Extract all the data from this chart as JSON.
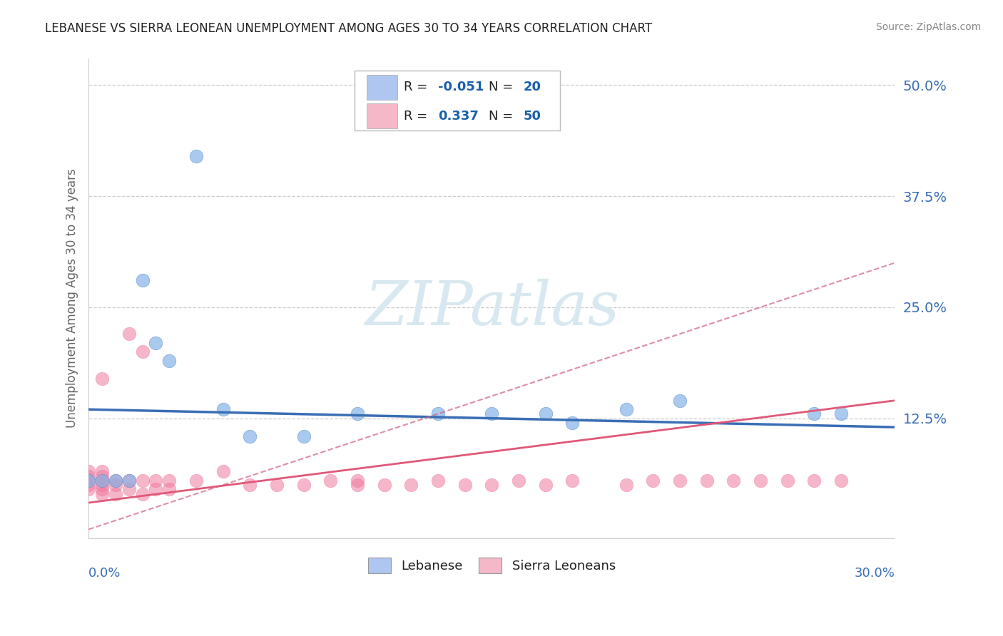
{
  "title": "LEBANESE VS SIERRA LEONEAN UNEMPLOYMENT AMONG AGES 30 TO 34 YEARS CORRELATION CHART",
  "source": "Source: ZipAtlas.com",
  "ylabel": "Unemployment Among Ages 30 to 34 years",
  "ytick_values": [
    0.0,
    0.125,
    0.25,
    0.375,
    0.5
  ],
  "ytick_labels": [
    "",
    "12.5%",
    "25.0%",
    "37.5%",
    "50.0%"
  ],
  "xlim": [
    0.0,
    0.3
  ],
  "ylim": [
    -0.01,
    0.53
  ],
  "legend_bottom": [
    "Lebanese",
    "Sierra Leoneans"
  ],
  "lebanese_color": "#85b4e8",
  "sierraleone_color": "#f07aa0",
  "lebanese_edge_color": "#6090c8",
  "sierraleone_edge_color": "#d05080",
  "lebanese_color_light": "#aec6f0",
  "sierraleone_color_light": "#f4b8c8",
  "trend_color_lebanese": "#3a6eb5",
  "trend_color_sierra_dashed": "#d06080",
  "trend_color_sierra_solid": "#e05878",
  "watermark_color": "#d8e8f0",
  "grid_color": "#cccccc",
  "background_color": "#ffffff",
  "lebanese_x": [
    0.04,
    0.02,
    0.025,
    0.03,
    0.0,
    0.005,
    0.01,
    0.015,
    0.05,
    0.06,
    0.08,
    0.1,
    0.13,
    0.15,
    0.17,
    0.18,
    0.22,
    0.27,
    0.28,
    0.2
  ],
  "lebanese_y": [
    0.42,
    0.28,
    0.21,
    0.19,
    0.055,
    0.055,
    0.055,
    0.055,
    0.135,
    0.105,
    0.105,
    0.13,
    0.13,
    0.13,
    0.13,
    0.12,
    0.145,
    0.13,
    0.13,
    0.135
  ],
  "sierra_x": [
    0.0,
    0.0,
    0.0,
    0.0,
    0.0,
    0.005,
    0.005,
    0.005,
    0.005,
    0.005,
    0.005,
    0.005,
    0.01,
    0.01,
    0.01,
    0.015,
    0.015,
    0.015,
    0.02,
    0.02,
    0.02,
    0.025,
    0.025,
    0.03,
    0.03,
    0.04,
    0.05,
    0.06,
    0.07,
    0.08,
    0.09,
    0.1,
    0.1,
    0.11,
    0.12,
    0.13,
    0.14,
    0.15,
    0.16,
    0.17,
    0.18,
    0.2,
    0.21,
    0.22,
    0.23,
    0.24,
    0.25,
    0.26,
    0.27,
    0.28
  ],
  "sierra_y": [
    0.045,
    0.05,
    0.055,
    0.06,
    0.065,
    0.04,
    0.045,
    0.05,
    0.055,
    0.06,
    0.065,
    0.17,
    0.04,
    0.05,
    0.055,
    0.045,
    0.055,
    0.22,
    0.04,
    0.055,
    0.2,
    0.045,
    0.055,
    0.045,
    0.055,
    0.055,
    0.065,
    0.05,
    0.05,
    0.05,
    0.055,
    0.05,
    0.055,
    0.05,
    0.05,
    0.055,
    0.05,
    0.05,
    0.055,
    0.05,
    0.055,
    0.05,
    0.055,
    0.055,
    0.055,
    0.055,
    0.055,
    0.055,
    0.055,
    0.055
  ]
}
